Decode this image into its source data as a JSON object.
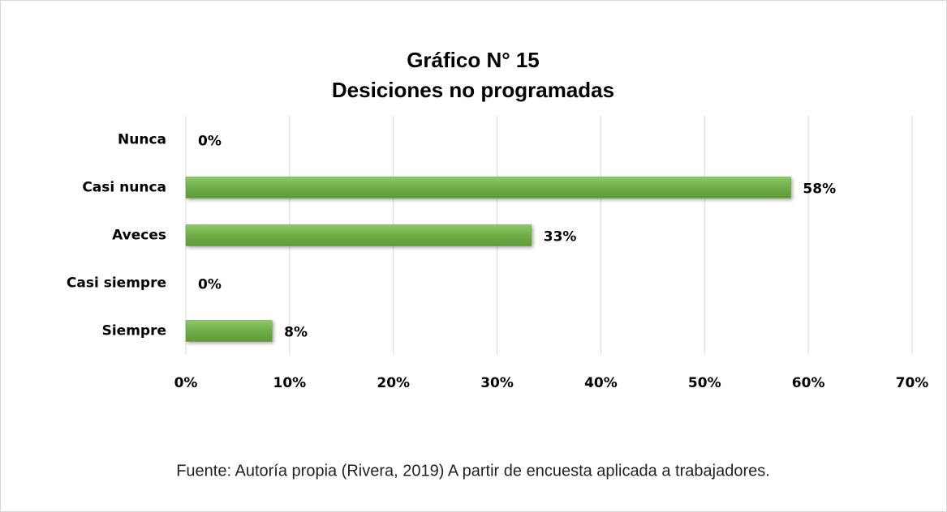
{
  "chart_data": {
    "type": "bar",
    "orientation": "horizontal",
    "title": "Gráfico N° 15",
    "subtitle": "Desiciones no programadas",
    "categories": [
      "Nunca",
      "Casi nunca",
      "Aveces",
      "Casi siempre",
      "Siempre"
    ],
    "values": [
      0,
      58.3,
      33.3,
      0,
      8.3
    ],
    "value_labels": [
      "0%",
      "58%",
      "33%",
      "0%",
      "8%"
    ],
    "color": "#70ad47",
    "xlim": [
      0,
      70
    ],
    "xticks": [
      {
        "value": 0,
        "label": "0%"
      },
      {
        "value": 10,
        "label": "10%"
      },
      {
        "value": 20,
        "label": "20%"
      },
      {
        "value": 30,
        "label": "30%"
      },
      {
        "value": 40,
        "label": "40%"
      },
      {
        "value": 50,
        "label": "50%"
      },
      {
        "value": 60,
        "label": "60%"
      },
      {
        "value": 70,
        "label": "70%"
      }
    ],
    "grid": true,
    "source": "Fuente: Autoría propia (Rivera, 2019) A partir de encuesta aplicada a trabajadores."
  }
}
